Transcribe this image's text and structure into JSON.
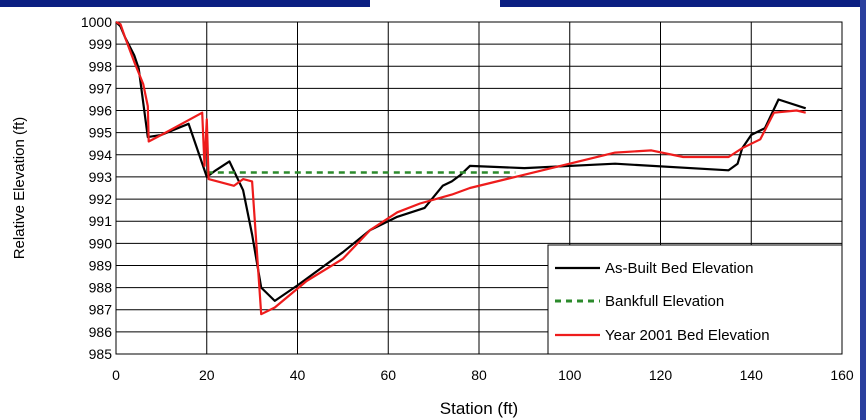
{
  "chart_data": {
    "type": "line",
    "xlabel": "Station (ft)",
    "ylabel": "Relative Elevation (ft)",
    "xlim": [
      0,
      160
    ],
    "ylim": [
      985,
      1000
    ],
    "xticks": [
      "0",
      "20",
      "40",
      "60",
      "80",
      "100",
      "120",
      "140",
      "160"
    ],
    "yticks": [
      "985",
      "986",
      "987",
      "988",
      "989",
      "990",
      "991",
      "992",
      "993",
      "994",
      "995",
      "996",
      "997",
      "998",
      "999",
      "1000"
    ],
    "grid": true,
    "legend_position": "bottom-right",
    "series": [
      {
        "name": "As-Built Bed Elevation",
        "color": "#000000",
        "style": "solid",
        "points": [
          [
            0,
            1000
          ],
          [
            1,
            999.8
          ],
          [
            2,
            999.3
          ],
          [
            3,
            998.9
          ],
          [
            4,
            998.5
          ],
          [
            5,
            997.9
          ],
          [
            7,
            994.8
          ],
          [
            10,
            994.9
          ],
          [
            16,
            995.4
          ],
          [
            20,
            993
          ],
          [
            22,
            993.3
          ],
          [
            25,
            993.7
          ],
          [
            28,
            992.4
          ],
          [
            30,
            990.4
          ],
          [
            32,
            988
          ],
          [
            35,
            987.4
          ],
          [
            40,
            988.1
          ],
          [
            50,
            989.6
          ],
          [
            56,
            990.6
          ],
          [
            62,
            991.2
          ],
          [
            68,
            991.6
          ],
          [
            72,
            992.6
          ],
          [
            74,
            992.8
          ],
          [
            76,
            993.1
          ],
          [
            78,
            993.5
          ],
          [
            90,
            993.4
          ],
          [
            110,
            993.6
          ],
          [
            135,
            993.3
          ],
          [
            137,
            993.6
          ],
          [
            138,
            994.3
          ],
          [
            140,
            994.9
          ],
          [
            143,
            995.2
          ],
          [
            146,
            996.5
          ],
          [
            152,
            996.1
          ]
        ]
      },
      {
        "name": "Bankfull Elevation",
        "color": "#2b8a2b",
        "style": "dashed",
        "points": [
          [
            20,
            993.2
          ],
          [
            88,
            993.2
          ]
        ]
      },
      {
        "name": "Year 2001 Bed Elevation",
        "color": "#ee1c1c",
        "style": "solid",
        "points": [
          [
            0,
            1000
          ],
          [
            1,
            999.9
          ],
          [
            2,
            999.3
          ],
          [
            4,
            998.2
          ],
          [
            6,
            997.2
          ],
          [
            7,
            996.2
          ],
          [
            7.2,
            994.6
          ],
          [
            10,
            994.9
          ],
          [
            19,
            995.9
          ],
          [
            19.5,
            993.5
          ],
          [
            20,
            995.6
          ],
          [
            20.4,
            992.9
          ],
          [
            26,
            992.6
          ],
          [
            28,
            992.9
          ],
          [
            30,
            992.8
          ],
          [
            32,
            986.8
          ],
          [
            35,
            987.1
          ],
          [
            42,
            988.3
          ],
          [
            50,
            989.3
          ],
          [
            56,
            990.6
          ],
          [
            62,
            991.4
          ],
          [
            67,
            991.8
          ],
          [
            74,
            992.2
          ],
          [
            78,
            992.5
          ],
          [
            88,
            993
          ],
          [
            110,
            994.1
          ],
          [
            118,
            994.2
          ],
          [
            125,
            993.9
          ],
          [
            135,
            993.9
          ],
          [
            138,
            994.3
          ],
          [
            142,
            994.7
          ],
          [
            145,
            995.9
          ],
          [
            150,
            996
          ],
          [
            152,
            995.9
          ]
        ]
      }
    ]
  }
}
